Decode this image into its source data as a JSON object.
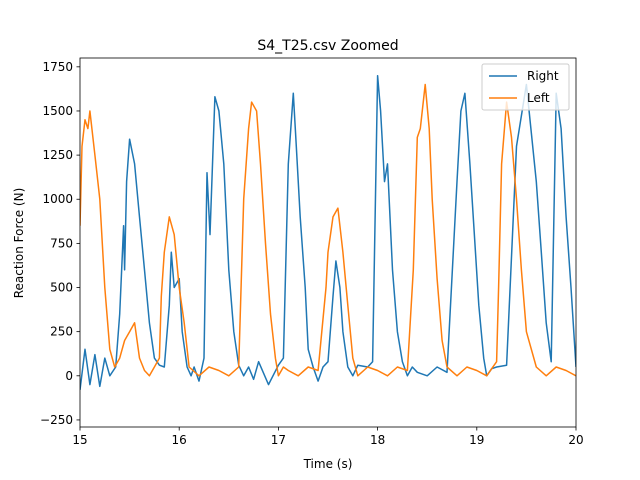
{
  "chart_data": {
    "type": "line",
    "title": "S4_T25.csv Zoomed",
    "xlabel": "Time (s)",
    "ylabel": "Reaction Force (N)",
    "xlim": [
      15,
      20
    ],
    "ylim": [
      -290,
      1800
    ],
    "xticks": [
      15,
      16,
      17,
      18,
      19,
      20
    ],
    "yticks": [
      -250,
      0,
      250,
      500,
      750,
      1000,
      1250,
      1500,
      1750
    ],
    "grid": false,
    "legend_position": "top-right",
    "series": [
      {
        "name": "Right",
        "color": "#1f77b4",
        "x": [
          15.0,
          15.05,
          15.1,
          15.15,
          15.2,
          15.25,
          15.3,
          15.36,
          15.4,
          15.44,
          15.45,
          15.47,
          15.5,
          15.55,
          15.6,
          15.65,
          15.7,
          15.75,
          15.8,
          15.85,
          15.9,
          15.92,
          15.95,
          16.0,
          16.03,
          16.08,
          16.12,
          16.15,
          16.2,
          16.25,
          16.28,
          16.31,
          16.36,
          16.4,
          16.45,
          16.5,
          16.55,
          16.6,
          16.65,
          16.7,
          16.75,
          16.8,
          16.9,
          17.0,
          17.05,
          17.1,
          17.15,
          17.18,
          17.22,
          17.27,
          17.3,
          17.35,
          17.4,
          17.45,
          17.5,
          17.55,
          17.58,
          17.62,
          17.65,
          17.7,
          17.75,
          17.8,
          17.9,
          17.95,
          18.0,
          18.03,
          18.07,
          18.1,
          18.15,
          18.2,
          18.25,
          18.3,
          18.35,
          18.4,
          18.5,
          18.6,
          18.7,
          18.8,
          18.84,
          18.88,
          18.93,
          18.97,
          19.02,
          19.07,
          19.1,
          19.15,
          19.2,
          19.3,
          19.4,
          19.5,
          19.6,
          19.65,
          19.7,
          19.75,
          19.8,
          19.85,
          19.9,
          19.95,
          20.0
        ],
        "y": [
          -80,
          150,
          -50,
          120,
          -60,
          100,
          0,
          50,
          350,
          850,
          600,
          1100,
          1340,
          1200,
          900,
          600,
          300,
          100,
          60,
          50,
          400,
          700,
          500,
          550,
          250,
          50,
          0,
          50,
          -30,
          100,
          1150,
          800,
          1580,
          1500,
          1200,
          600,
          250,
          60,
          0,
          50,
          -20,
          80,
          -50,
          60,
          100,
          1200,
          1600,
          1300,
          900,
          500,
          150,
          50,
          -30,
          50,
          80,
          450,
          650,
          500,
          250,
          50,
          0,
          60,
          50,
          80,
          1700,
          1500,
          1100,
          1200,
          600,
          250,
          80,
          0,
          50,
          20,
          0,
          50,
          20,
          1100,
          1500,
          1600,
          1200,
          850,
          400,
          100,
          0,
          40,
          50,
          60,
          1300,
          1650,
          1100,
          700,
          300,
          80,
          1600,
          1400,
          900,
          500,
          50
        ]
      },
      {
        "name": "Left",
        "color": "#ff7f0e",
        "x": [
          15.0,
          15.02,
          15.05,
          15.08,
          15.1,
          15.15,
          15.2,
          15.25,
          15.3,
          15.35,
          15.4,
          15.45,
          15.5,
          15.55,
          15.6,
          15.65,
          15.7,
          15.75,
          15.8,
          15.82,
          15.85,
          15.9,
          15.95,
          16.0,
          16.05,
          16.1,
          16.2,
          16.3,
          16.4,
          16.5,
          16.6,
          16.65,
          16.7,
          16.73,
          16.78,
          16.82,
          16.87,
          16.92,
          16.97,
          17.0,
          17.05,
          17.1,
          17.2,
          17.3,
          17.4,
          17.48,
          17.5,
          17.55,
          17.6,
          17.65,
          17.7,
          17.75,
          17.8,
          17.9,
          18.0,
          18.1,
          18.2,
          18.3,
          18.36,
          18.4,
          18.43,
          18.48,
          18.52,
          18.55,
          18.6,
          18.65,
          18.7,
          18.8,
          18.9,
          19.0,
          19.1,
          19.2,
          19.22,
          19.25,
          19.3,
          19.35,
          19.4,
          19.45,
          19.5,
          19.6,
          19.7,
          19.8,
          19.9,
          20.0
        ],
        "y": [
          850,
          1300,
          1450,
          1400,
          1500,
          1250,
          1000,
          500,
          150,
          50,
          100,
          200,
          250,
          300,
          100,
          30,
          0,
          50,
          100,
          450,
          700,
          900,
          800,
          500,
          300,
          50,
          0,
          50,
          30,
          0,
          50,
          1000,
          1400,
          1550,
          1500,
          1200,
          750,
          350,
          100,
          0,
          50,
          30,
          0,
          50,
          30,
          500,
          700,
          900,
          950,
          700,
          400,
          100,
          0,
          50,
          30,
          0,
          50,
          30,
          600,
          1350,
          1400,
          1650,
          1400,
          1000,
          550,
          200,
          50,
          0,
          50,
          30,
          0,
          80,
          500,
          1200,
          1550,
          1350,
          1000,
          600,
          250,
          50,
          0,
          50,
          30,
          0
        ]
      }
    ]
  }
}
